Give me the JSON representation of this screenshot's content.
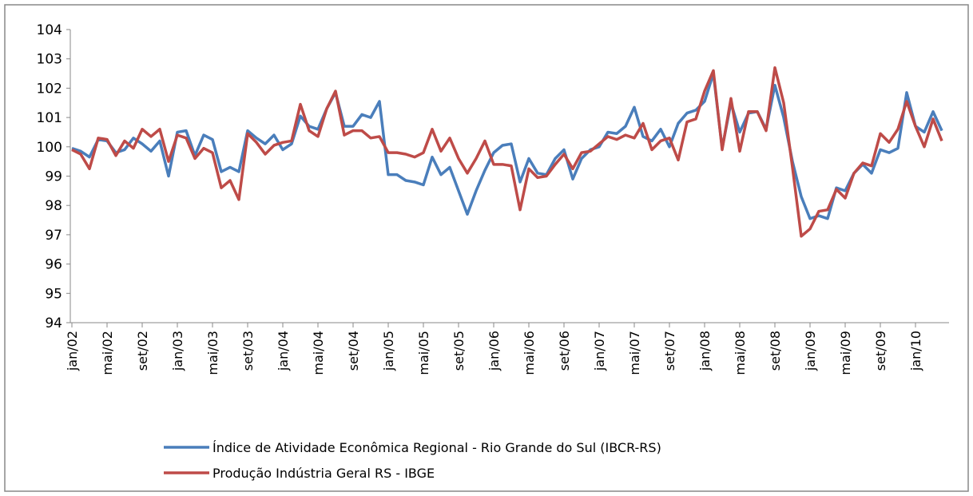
{
  "chart_data": {
    "type": "line",
    "categories": [
      "jan/02",
      null,
      null,
      null,
      "mai/02",
      null,
      null,
      null,
      "set/02",
      null,
      null,
      null,
      "jan/03",
      null,
      null,
      null,
      "mai/03",
      null,
      null,
      null,
      "set/03",
      null,
      null,
      null,
      "jan/04",
      null,
      null,
      null,
      "mai/04",
      null,
      null,
      null,
      "set/04",
      null,
      null,
      null,
      "jan/05",
      null,
      null,
      null,
      "mai/05",
      null,
      null,
      null,
      "set/05",
      null,
      null,
      null,
      "jan/06",
      null,
      null,
      null,
      "mai/06",
      null,
      null,
      null,
      "set/06",
      null,
      null,
      null,
      "jan/07",
      null,
      null,
      null,
      "mai/07",
      null,
      null,
      null,
      "set/07",
      null,
      null,
      null,
      "jan/08",
      null,
      null,
      null,
      "mai/08",
      null,
      null,
      null,
      "set/08",
      null,
      null,
      null,
      "jan/09",
      null,
      null,
      null,
      "mai/09",
      null,
      null,
      null,
      "set/09",
      null,
      null,
      null,
      "jan/10",
      null,
      null,
      null
    ],
    "series": [
      {
        "name": "Índice de Atividade Econômica Regional - Rio Grande do Sul (IBCR-RS)",
        "color": "#4a7ebb",
        "values": [
          99.95,
          99.85,
          99.65,
          100.25,
          100.2,
          99.8,
          99.9,
          100.3,
          100.1,
          99.85,
          100.2,
          99.0,
          100.5,
          100.55,
          99.7,
          100.4,
          100.25,
          99.15,
          99.3,
          99.15,
          100.55,
          100.3,
          100.1,
          100.4,
          99.9,
          100.1,
          101.05,
          100.7,
          100.6,
          101.3,
          101.85,
          100.7,
          100.7,
          101.1,
          101.0,
          101.55,
          99.05,
          99.05,
          98.85,
          98.8,
          98.7,
          99.65,
          99.05,
          99.3,
          98.5,
          97.7,
          98.5,
          99.2,
          99.8,
          100.05,
          100.1,
          98.8,
          99.6,
          99.1,
          99.05,
          99.6,
          99.9,
          98.9,
          99.6,
          99.9,
          100.0,
          100.5,
          100.45,
          100.7,
          101.35,
          100.35,
          100.2,
          100.6,
          100.0,
          100.8,
          101.15,
          101.25,
          101.55,
          102.5,
          99.95,
          101.5,
          100.5,
          101.15,
          101.2,
          100.6,
          102.1,
          101.0,
          99.5,
          98.3,
          97.55,
          97.65,
          97.55,
          98.6,
          98.5,
          99.1,
          99.4,
          99.1,
          99.9,
          99.8,
          99.95,
          101.85,
          100.7,
          100.5,
          101.2,
          100.55
        ]
      },
      {
        "name": "Produção Indústria Geral RS - IBGE",
        "color": "#be4b48",
        "values": [
          99.9,
          99.75,
          99.25,
          100.3,
          100.25,
          99.7,
          100.2,
          99.95,
          100.6,
          100.35,
          100.6,
          99.5,
          100.4,
          100.3,
          99.6,
          99.95,
          99.8,
          98.6,
          98.85,
          98.2,
          100.45,
          100.15,
          99.75,
          100.05,
          100.15,
          100.2,
          101.45,
          100.55,
          100.35,
          101.3,
          101.9,
          100.4,
          100.55,
          100.55,
          100.3,
          100.35,
          99.8,
          99.8,
          99.75,
          99.65,
          99.8,
          100.6,
          99.85,
          100.3,
          99.6,
          99.1,
          99.6,
          100.2,
          99.4,
          99.4,
          99.35,
          97.85,
          99.25,
          98.95,
          99.0,
          99.4,
          99.75,
          99.25,
          99.8,
          99.85,
          100.1,
          100.35,
          100.25,
          100.4,
          100.3,
          100.8,
          99.9,
          100.2,
          100.3,
          99.55,
          100.85,
          100.95,
          101.9,
          102.6,
          99.9,
          101.65,
          99.85,
          101.2,
          101.2,
          100.55,
          102.7,
          101.5,
          99.3,
          96.95,
          97.2,
          97.8,
          97.85,
          98.55,
          98.25,
          99.1,
          99.45,
          99.35,
          100.45,
          100.15,
          100.6,
          101.55,
          100.7,
          100.0,
          100.95,
          100.2
        ]
      }
    ],
    "ylim": [
      94,
      104
    ],
    "yticks": [
      94,
      95,
      96,
      97,
      98,
      99,
      100,
      101,
      102,
      103,
      104
    ]
  }
}
